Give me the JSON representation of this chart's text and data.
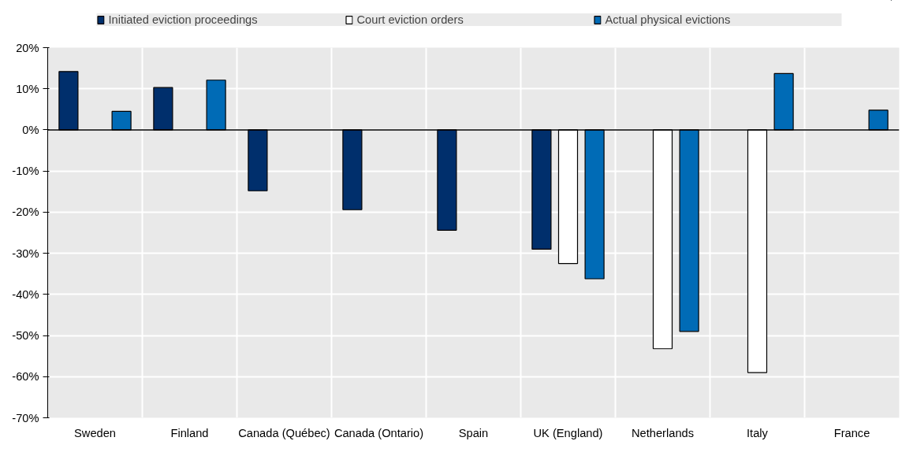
{
  "chart_data": {
    "type": "bar",
    "categories": [
      "Sweden",
      "Finland",
      "Canada (Québec)",
      "Canada (Ontario)",
      "Spain",
      "UK (England)",
      "Netherlands",
      "Italy",
      "France"
    ],
    "series": [
      {
        "name": "Initiated eviction proceedings",
        "color": "#002f6c",
        "values": [
          14.2,
          10.3,
          -14.8,
          -19.4,
          -24.4,
          -29,
          null,
          null,
          null
        ]
      },
      {
        "name": "Court eviction orders",
        "color": "#ffffff",
        "values": [
          null,
          null,
          null,
          null,
          null,
          -32.5,
          -53.2,
          -59,
          null
        ]
      },
      {
        "name": "Actual physical evictions",
        "color": "#006bb6",
        "values": [
          4.5,
          12.1,
          null,
          null,
          null,
          -36.2,
          -49,
          13.7,
          4.8
        ]
      }
    ],
    "ylim": [
      -70,
      20
    ],
    "yticks": [
      {
        "value": 20,
        "label": "20%"
      },
      {
        "value": 10,
        "label": "10%"
      },
      {
        "value": 0,
        "label": "0%"
      },
      {
        "value": -10,
        "label": "-10%"
      },
      {
        "value": -20,
        "label": "-20%"
      },
      {
        "value": -30,
        "label": "-30%"
      },
      {
        "value": -40,
        "label": "-40%"
      },
      {
        "value": -50,
        "label": "-50%"
      },
      {
        "value": -60,
        "label": "-60%"
      },
      {
        "value": -70,
        "label": "-70%"
      }
    ],
    "grid": true,
    "legend": "top"
  }
}
